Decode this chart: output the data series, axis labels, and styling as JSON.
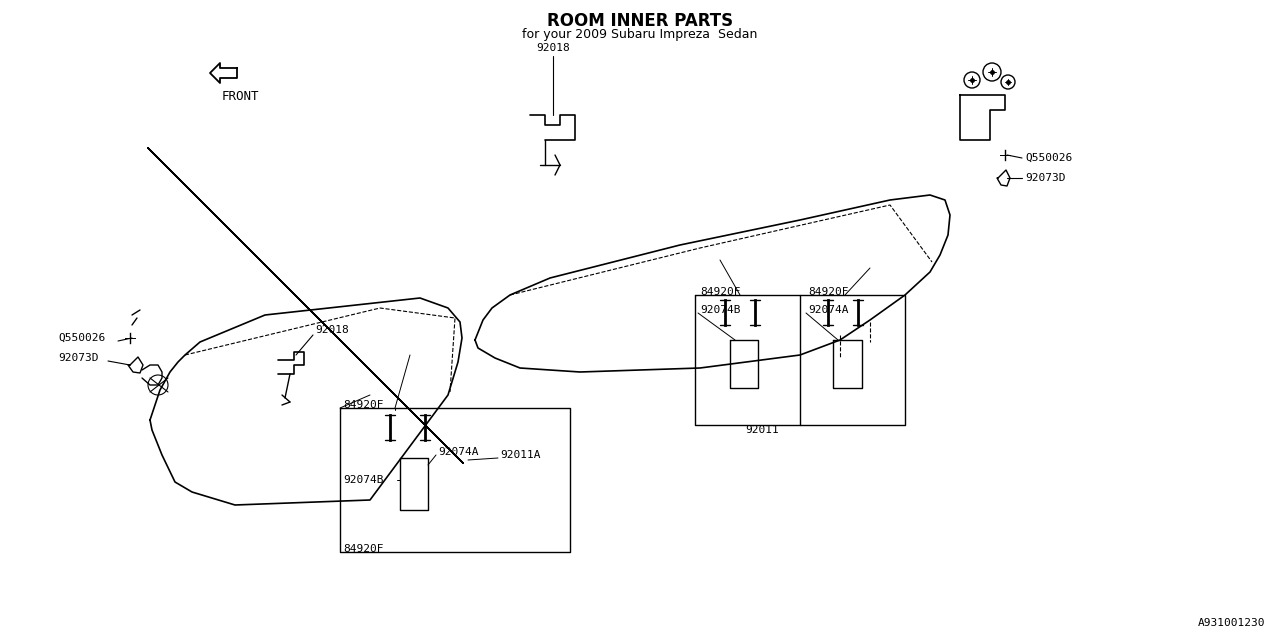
{
  "bg_color": "#ffffff",
  "line_color": "#000000",
  "title": "ROOM INNER PARTS",
  "subtitle": "for your 2009 Subaru Impreza  Sedan",
  "diagram_id": "A931001230",
  "lw": 1.0
}
